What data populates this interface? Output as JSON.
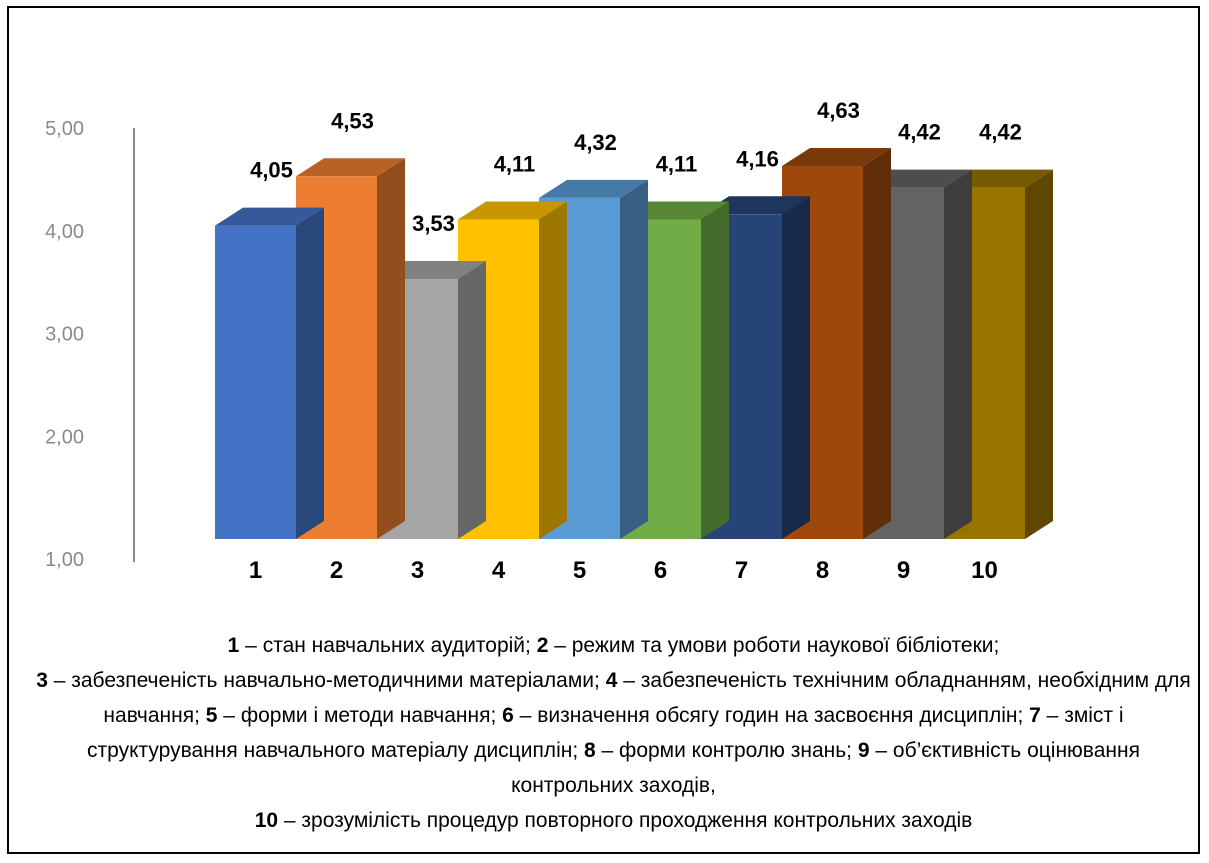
{
  "chart_data": {
    "type": "bar",
    "title": "",
    "xlabel": "",
    "ylabel": "",
    "ylim": [
      1,
      5
    ],
    "yticks": [
      "1,00",
      "2,00",
      "3,00",
      "4,00",
      "5,00"
    ],
    "grid": false,
    "style": "3d-columns",
    "categories": [
      "1",
      "2",
      "3",
      "4",
      "5",
      "6",
      "7",
      "8",
      "9",
      "10"
    ],
    "values": [
      4.05,
      4.53,
      3.53,
      4.11,
      4.32,
      4.11,
      4.16,
      4.63,
      4.42,
      4.42
    ],
    "value_labels": [
      "4,05",
      "4,53",
      "3,53",
      "4,11",
      "4,32",
      "4,11",
      "4,16",
      "4,63",
      "4,42",
      "4,42"
    ],
    "colors": [
      "#4472c4",
      "#ed7d31",
      "#a5a5a5",
      "#ffc000",
      "#5b9bd5",
      "#70ad47",
      "#264478",
      "#9e480e",
      "#636363",
      "#997300"
    ]
  },
  "legend": [
    {
      "num": "1",
      "text": "стан навчальних аудиторій; "
    },
    {
      "num": "2",
      "text": "режим та умови роботи наукової бібліотеки;"
    },
    {
      "num": "3",
      "text": "забезпеченість навчально-методичними матеріалами; "
    },
    {
      "num": "4",
      "text": "забезпеченість технічним обладнанням, необхідним для навчання; "
    },
    {
      "num": "5",
      "text": "форми і методи навчання; "
    },
    {
      "num": "6",
      "text": "визначення обсягу годин на засвоєння дисциплін; "
    },
    {
      "num": "7",
      "text": "зміст і структурування навчального матеріалу дисциплін; "
    },
    {
      "num": "8",
      "text": "форми контролю знань; "
    },
    {
      "num": "9",
      "text": "об’єктивність оцінювання контрольних заходів,"
    },
    {
      "num": "10",
      "text": "зрозумілість процедур повторного проходження контрольних заходів"
    }
  ]
}
